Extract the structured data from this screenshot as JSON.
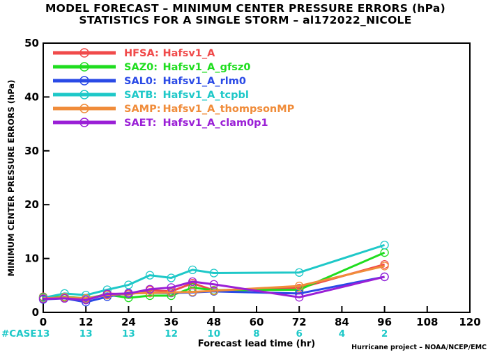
{
  "chart_data": {
    "type": "line",
    "title": "MODEL FORECAST – MINIMUM CENTER PRESSURE ERRORS (hPa)",
    "subtitle": "STATISTICS FOR A SINGLE STORM – al172022_NICOLE",
    "xlabel": "Forecast lead time (hr)",
    "ylabel": "MINIMUM CENTER PRESSURE ERRORS (hPa)",
    "xlim": [
      0,
      120
    ],
    "ylim": [
      0,
      50
    ],
    "x_ticks": [
      0,
      12,
      24,
      36,
      48,
      60,
      72,
      84,
      96,
      108,
      120
    ],
    "y_ticks": [
      0,
      10,
      20,
      30,
      40,
      50
    ],
    "grid": false,
    "legend_position": "top-left",
    "case_label": "#CASE",
    "case_color": "#1ec8c8",
    "cases": [
      {
        "x": 0,
        "label": "13"
      },
      {
        "x": 12,
        "label": "13"
      },
      {
        "x": 24,
        "label": "13"
      },
      {
        "x": 36,
        "label": "12"
      },
      {
        "x": 48,
        "label": "10"
      },
      {
        "x": 60,
        "label": "8"
      },
      {
        "x": 72,
        "label": "6"
      },
      {
        "x": 84,
        "label": "4"
      },
      {
        "x": 96,
        "label": "2"
      }
    ],
    "credit": "Hurricane project – NOAA/NCEP/EMC",
    "series": [
      {
        "code": "HFSA:",
        "name": "Hafsv1_A",
        "color": "#f04a4a",
        "x": [
          0,
          6,
          12,
          18,
          24,
          30,
          36,
          42,
          48,
          72,
          96
        ],
        "y": [
          2.9,
          2.7,
          2.3,
          3.5,
          3.3,
          4.1,
          3.9,
          5.4,
          4.1,
          4.5,
          8.9
        ]
      },
      {
        "code": "SAZ0:",
        "name": "Hafsv1_A_gfsz0",
        "color": "#1fdd1f",
        "x": [
          0,
          6,
          12,
          18,
          24,
          30,
          36,
          42,
          48,
          72,
          96
        ],
        "y": [
          2.8,
          2.9,
          2.6,
          3.3,
          2.7,
          3.1,
          3.1,
          4.6,
          4.1,
          4.2,
          11.1
        ]
      },
      {
        "code": "SAL0:",
        "name": "Hafsv1_A_rlm0",
        "color": "#2a4ae6",
        "x": [
          0,
          6,
          12,
          18,
          24,
          30,
          36,
          42,
          48,
          72,
          96
        ],
        "y": [
          2.4,
          2.6,
          1.9,
          2.9,
          3.6,
          3.6,
          3.6,
          3.7,
          3.9,
          3.5,
          6.6
        ]
      },
      {
        "code": "SATB:",
        "name": "Hafsv1_A_tcpbl",
        "color": "#1ec8c8",
        "x": [
          0,
          6,
          12,
          18,
          24,
          30,
          36,
          42,
          48,
          72,
          96
        ],
        "y": [
          2.7,
          3.5,
          3.2,
          4.2,
          5.1,
          6.9,
          6.4,
          7.9,
          7.3,
          7.4,
          12.5
        ]
      },
      {
        "code": "SAMP:",
        "name": "Hafsv1_A_thompsonMP",
        "color": "#f08c3a",
        "x": [
          0,
          6,
          12,
          18,
          24,
          30,
          36,
          42,
          48,
          72,
          96
        ],
        "y": [
          2.6,
          2.8,
          2.6,
          3.2,
          3.5,
          3.6,
          3.7,
          3.8,
          4.0,
          4.9,
          8.6
        ]
      },
      {
        "code": "SAET:",
        "name": "Hafsv1_A_clam0p1",
        "color": "#9a1fd6",
        "x": [
          0,
          6,
          12,
          18,
          24,
          30,
          36,
          42,
          48,
          72,
          96
        ],
        "y": [
          2.5,
          2.6,
          2.3,
          3.4,
          3.5,
          4.3,
          4.6,
          5.7,
          5.2,
          2.8,
          6.6
        ]
      }
    ]
  }
}
